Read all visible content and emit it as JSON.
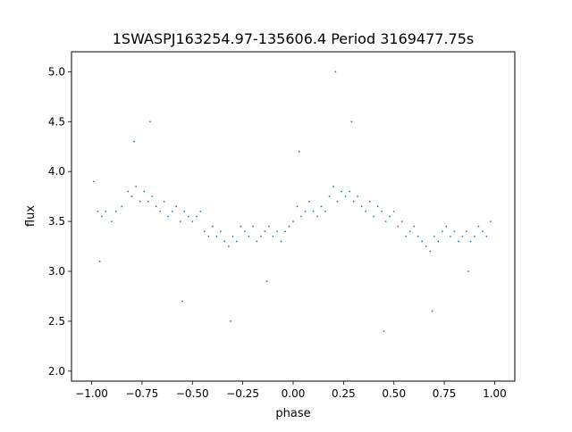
{
  "chart_data": {
    "type": "scatter",
    "title": "1SWASPJ163254.97-135606.4 Period 3169477.75s",
    "xlabel": "phase",
    "ylabel": "flux",
    "xlim": [
      -1.1,
      1.1
    ],
    "ylim": [
      1.9,
      5.2
    ],
    "xticks": [
      -1.0,
      -0.75,
      -0.5,
      -0.25,
      0.0,
      0.25,
      0.5,
      0.75,
      1.0
    ],
    "xtick_labels": [
      "−1.00",
      "−0.75",
      "−0.50",
      "−0.25",
      "0.00",
      "0.25",
      "0.50",
      "0.75",
      "1.00"
    ],
    "yticks": [
      2.0,
      2.5,
      3.0,
      3.5,
      4.0,
      4.5,
      5.0
    ],
    "ytick_labels": [
      "2.0",
      "2.5",
      "3.0",
      "3.5",
      "4.0",
      "4.5",
      "5.0"
    ],
    "grid": false,
    "legend": "none",
    "marker_color": "#1f77b4",
    "series": [
      {
        "x": [
          -0.99,
          -0.97,
          -0.95,
          -0.93,
          -0.9,
          -0.88,
          -0.85,
          -0.82,
          -0.8,
          -0.78,
          -0.76,
          -0.74,
          -0.72,
          -0.7,
          -0.68,
          -0.66,
          -0.64,
          -0.62,
          -0.6,
          -0.58,
          -0.56,
          -0.54,
          -0.52,
          -0.5,
          -0.48,
          -0.46,
          -0.44,
          -0.42,
          -0.4,
          -0.38,
          -0.36,
          -0.34,
          -0.32,
          -0.3,
          -0.28,
          -0.26,
          -0.24,
          -0.22,
          -0.2,
          -0.18,
          -0.16,
          -0.14,
          -0.12,
          -0.1,
          -0.08,
          -0.06,
          -0.04,
          -0.02,
          0.0,
          0.02,
          0.04,
          0.06,
          0.08,
          0.1,
          0.12,
          0.14,
          0.16,
          0.18,
          0.2,
          0.22,
          0.24,
          0.26,
          0.28,
          0.3,
          0.32,
          0.34,
          0.36,
          0.38,
          0.4,
          0.42,
          0.44,
          0.46,
          0.48,
          0.5,
          0.52,
          0.54,
          0.56,
          0.58,
          0.6,
          0.62,
          0.64,
          0.66,
          0.68,
          0.7,
          0.72,
          0.74,
          0.76,
          0.78,
          0.8,
          0.82,
          0.84,
          0.86,
          0.88,
          0.9,
          0.92,
          0.94,
          0.96,
          0.98,
          -0.96,
          -0.79,
          -0.71,
          -0.55,
          -0.31,
          -0.13,
          0.03,
          0.21,
          0.29,
          0.45,
          0.69,
          0.87
        ],
        "y": [
          3.9,
          3.6,
          3.55,
          3.6,
          3.5,
          3.6,
          3.65,
          3.8,
          3.75,
          3.85,
          3.7,
          3.8,
          3.7,
          3.75,
          3.65,
          3.6,
          3.7,
          3.55,
          3.6,
          3.65,
          3.5,
          3.6,
          3.55,
          3.5,
          3.55,
          3.6,
          3.4,
          3.35,
          3.45,
          3.35,
          3.4,
          3.3,
          3.25,
          3.35,
          3.3,
          3.45,
          3.4,
          3.35,
          3.45,
          3.3,
          3.35,
          3.4,
          3.45,
          3.35,
          3.4,
          3.3,
          3.4,
          3.45,
          3.5,
          3.65,
          3.55,
          3.6,
          3.7,
          3.6,
          3.55,
          3.65,
          3.6,
          3.75,
          3.85,
          3.7,
          3.8,
          3.75,
          3.8,
          3.7,
          3.75,
          3.65,
          3.6,
          3.7,
          3.55,
          3.65,
          3.6,
          3.5,
          3.55,
          3.6,
          3.45,
          3.5,
          3.35,
          3.4,
          3.45,
          3.35,
          3.3,
          3.25,
          3.2,
          3.35,
          3.3,
          3.4,
          3.45,
          3.35,
          3.4,
          3.3,
          3.35,
          3.4,
          3.3,
          3.35,
          3.45,
          3.4,
          3.35,
          3.5,
          3.1,
          4.3,
          4.5,
          2.7,
          2.5,
          2.9,
          4.2,
          5.0,
          4.5,
          2.4,
          2.6,
          3.0
        ]
      }
    ]
  }
}
